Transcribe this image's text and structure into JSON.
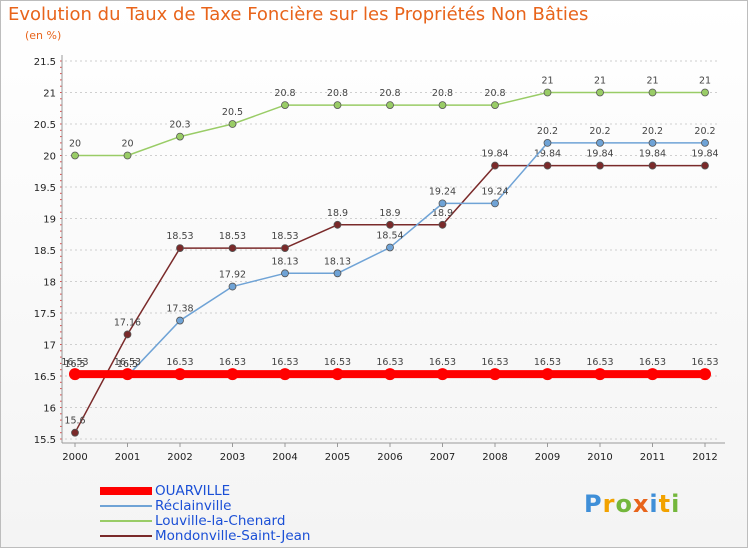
{
  "title": "Evolution du Taux de Taxe Foncière sur les Propriétés Non Bâties",
  "y_unit": "(en %)",
  "chart_data": {
    "type": "line",
    "x": [
      "2000",
      "2001",
      "2002",
      "2003",
      "2004",
      "2005",
      "2006",
      "2007",
      "2008",
      "2009",
      "2010",
      "2011",
      "2012"
    ],
    "y_ticks": [
      "15.5",
      "16",
      "16.5",
      "17",
      "17.5",
      "18",
      "18.5",
      "19",
      "19.5",
      "20",
      "20.5",
      "21",
      "21.5"
    ],
    "ylim": [
      15.5,
      21.5
    ],
    "grid": "horizontal dashed",
    "legend_position": "bottom-left",
    "series": [
      {
        "name": "Louville-la-Chenard",
        "color": "#99cc66",
        "values": [
          20,
          20,
          20.3,
          20.5,
          20.8,
          20.8,
          20.8,
          20.8,
          20.8,
          21,
          21,
          21,
          21
        ],
        "labels": [
          "20",
          "20",
          "20.3",
          "20.5",
          "20.8",
          "20.8",
          "20.8",
          "20.8",
          "20.8",
          "21",
          "21",
          "21",
          "21"
        ]
      },
      {
        "name": "Mondonville-Saint-Jean",
        "color": "#7a2a2a",
        "values": [
          15.6,
          17.16,
          18.53,
          18.53,
          18.53,
          18.9,
          18.9,
          18.9,
          19.84,
          19.84,
          19.84,
          19.84,
          19.84
        ],
        "labels": [
          "15.6",
          "17.16",
          "18.53",
          "18.53",
          "18.53",
          "18.9",
          "18.9",
          "18.9",
          "19.84",
          "19.84",
          "19.84",
          "19.84",
          "19.84"
        ]
      },
      {
        "name": "Réclainville",
        "color": "#6fa3d6",
        "values": [
          16.5,
          16.5,
          17.38,
          17.92,
          18.13,
          18.13,
          18.54,
          19.24,
          19.24,
          20.2,
          20.2,
          20.2,
          20.2
        ],
        "labels": [
          "16.5",
          "16.5",
          "17.38",
          "17.92",
          "18.13",
          "18.13",
          "18.54",
          "19.24",
          "19.24",
          "20.2",
          "20.2",
          "20.2",
          "20.2"
        ]
      },
      {
        "name": "OUARVILLE",
        "color": "#ff0000",
        "values": [
          16.53,
          16.53,
          16.53,
          16.53,
          16.53,
          16.53,
          16.53,
          16.53,
          16.53,
          16.53,
          16.53,
          16.53,
          16.53
        ],
        "labels": [
          "16.53",
          "16.53",
          "16.53",
          "16.53",
          "16.53",
          "16.53",
          "16.53",
          "16.53",
          "16.53",
          "16.53",
          "16.53",
          "16.53",
          "16.53"
        ]
      }
    ]
  },
  "legend": [
    {
      "label": "OUARVILLE",
      "color": "#ff0000"
    },
    {
      "label": "Réclainville",
      "color": "#6fa3d6"
    },
    {
      "label": "Louville-la-Chenard",
      "color": "#99cc66"
    },
    {
      "label": "Mondonville-Saint-Jean",
      "color": "#7a2a2a"
    }
  ],
  "logo": {
    "letters": [
      "P",
      "r",
      "o",
      "x",
      "i",
      "t",
      "i"
    ],
    "colors": [
      "#3f8fd8",
      "#f2a200",
      "#74b73c",
      "#e8641b",
      "#3f8fd8",
      "#f2a200",
      "#74b73c"
    ]
  }
}
